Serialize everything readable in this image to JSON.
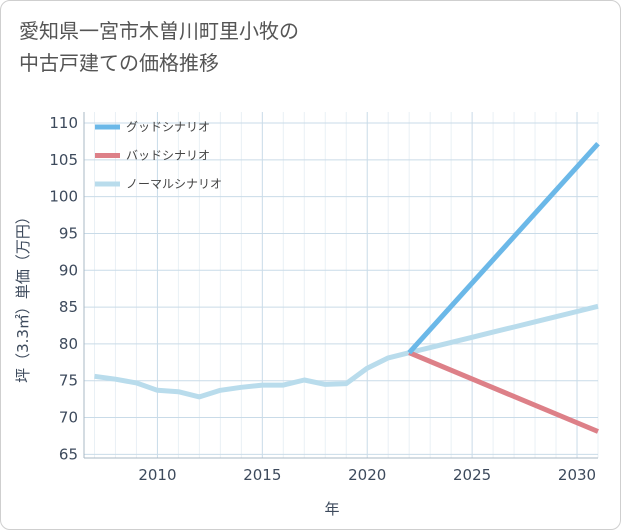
{
  "title_lines": [
    "愛知県一宮市木曽川町里小牧の",
    "中古戸建ての価格推移"
  ],
  "chart_data": {
    "type": "line",
    "title": "愛知県一宮市木曽川町里小牧の中古戸建ての価格推移",
    "xlabel": "年",
    "ylabel": "坪（3.3㎡）単価（万円）",
    "xlim": [
      2006.5,
      2031
    ],
    "ylim": [
      64.5,
      111.5
    ],
    "x_ticks": [
      2010,
      2015,
      2020,
      2025,
      2030
    ],
    "y_ticks": [
      65,
      70,
      75,
      80,
      85,
      90,
      95,
      100,
      105,
      110
    ],
    "grid": true,
    "legend_position": "top-left",
    "series": [
      {
        "name": "グッドシナリオ",
        "color": "#6bb8e8",
        "x": [
          2022,
          2031
        ],
        "values": [
          78.8,
          107.2
        ]
      },
      {
        "name": "バッドシナリオ",
        "color": "#dd8088",
        "x": [
          2022,
          2031
        ],
        "values": [
          78.8,
          68.1
        ]
      },
      {
        "name": "ノーマルシナリオ",
        "color": "#b9dcec",
        "x": [
          2007,
          2008,
          2009,
          2010,
          2011,
          2012,
          2013,
          2014,
          2015,
          2016,
          2017,
          2018,
          2019,
          2020,
          2021,
          2022,
          2023,
          2024,
          2025,
          2026,
          2027,
          2028,
          2029,
          2030,
          2031
        ],
        "values": [
          75.6,
          75.2,
          74.7,
          73.7,
          73.5,
          72.8,
          73.7,
          74.1,
          74.4,
          74.4,
          75.1,
          74.5,
          74.6,
          76.7,
          78.1,
          78.8,
          79.5,
          80.2,
          80.9,
          81.6,
          82.3,
          83.0,
          83.7,
          84.4,
          85.1
        ]
      }
    ]
  }
}
